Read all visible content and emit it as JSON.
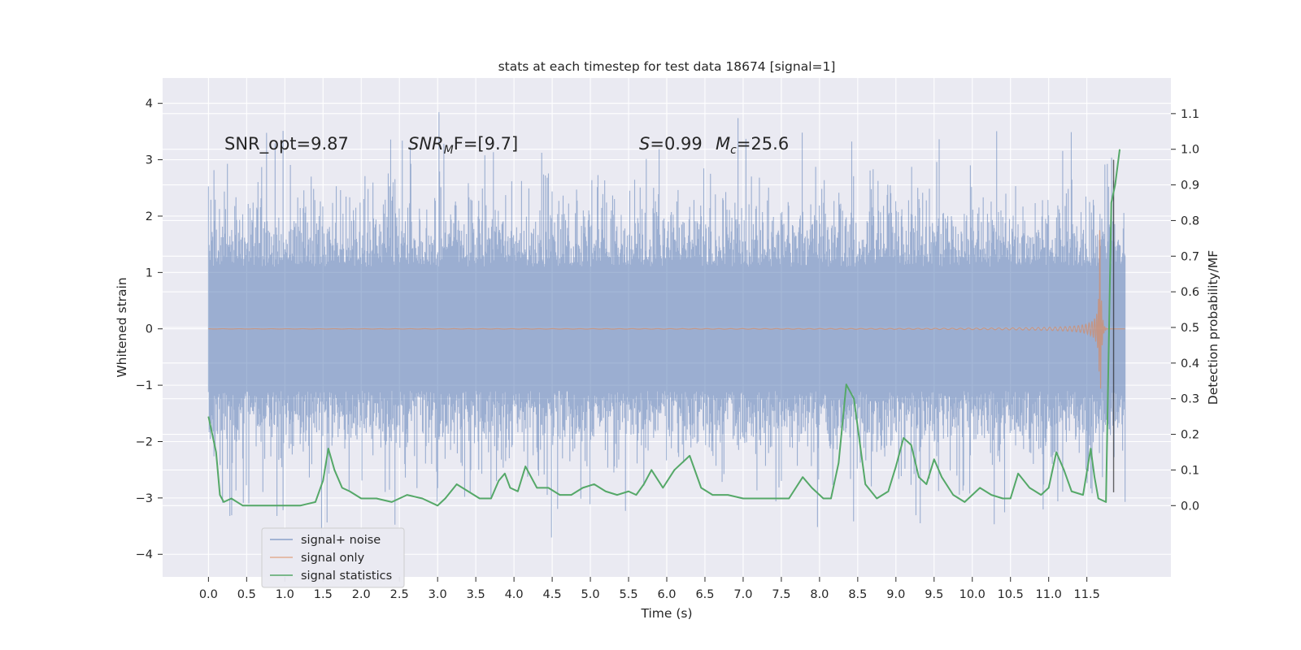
{
  "chart_data": {
    "type": "line",
    "title": "stats at each timestep for test data 18674 [signal=1]",
    "xlabel": "Time (s)",
    "ylabel_left": "Whitened strain",
    "ylabel_right": "Detection probability/MF",
    "xlim": [
      -0.6,
      12.6
    ],
    "ylim_left": [
      -4.4,
      4.45
    ],
    "ylim_right": [
      -0.2,
      1.2
    ],
    "grid": true,
    "legend_position": "lower-left",
    "x_ticks": [
      "0.0",
      "0.5",
      "1.0",
      "1.5",
      "2.0",
      "2.5",
      "3.0",
      "3.5",
      "4.0",
      "4.5",
      "5.0",
      "5.5",
      "6.0",
      "6.5",
      "7.0",
      "7.5",
      "8.0",
      "8.5",
      "9.0",
      "9.5",
      "10.0",
      "10.5",
      "11.0",
      "11.5"
    ],
    "y_left_ticks": [
      "4",
      "3",
      "2",
      "1",
      "0",
      "−1",
      "−2",
      "−3",
      "−4"
    ],
    "y_right_ticks": [
      "1.1",
      "1.0",
      "0.9",
      "0.8",
      "0.7",
      "0.6",
      "0.5",
      "0.4",
      "0.3",
      "0.2",
      "0.1",
      "0.0"
    ],
    "annotations": {
      "snr_opt": "SNR_opt=9.87",
      "snr_mf_main": "SNR",
      "snr_mf_sub": "M",
      "snr_mf_rest": "F=[9.7]",
      "s_label": "S",
      "s_value": "=0.99",
      "mc_label": "M",
      "mc_sub": "c",
      "mc_value": "=25.6"
    },
    "series": [
      {
        "name": "signal+ noise",
        "color": "#4c72b0",
        "description_range": {
          "x": [
            0.0,
            12.0
          ],
          "y_typical": [
            -1.3,
            1.3
          ],
          "y_max": 4.1,
          "y_min": -3.7
        }
      },
      {
        "name": "signal only",
        "color": "#dd8452",
        "chirp": {
          "x_start": 0.0,
          "x_merger": 11.67,
          "x_end": 12.0,
          "peak_amplitude": 1.95
        }
      },
      {
        "name": "signal statistics",
        "color": "#55a868",
        "axis": "right",
        "x": [
          0.0,
          0.1,
          0.15,
          0.2,
          0.3,
          0.45,
          0.6,
          0.8,
          1.0,
          1.2,
          1.4,
          1.5,
          1.57,
          1.65,
          1.75,
          1.85,
          2.0,
          2.2,
          2.4,
          2.6,
          2.8,
          3.0,
          3.1,
          3.25,
          3.4,
          3.55,
          3.7,
          3.8,
          3.88,
          3.95,
          4.05,
          4.15,
          4.3,
          4.45,
          4.6,
          4.75,
          4.9,
          5.05,
          5.2,
          5.35,
          5.5,
          5.6,
          5.7,
          5.8,
          5.95,
          6.1,
          6.3,
          6.45,
          6.6,
          6.8,
          7.0,
          7.2,
          7.4,
          7.6,
          7.78,
          7.9,
          8.05,
          8.15,
          8.25,
          8.35,
          8.45,
          8.6,
          8.75,
          8.9,
          9.0,
          9.1,
          9.2,
          9.3,
          9.4,
          9.5,
          9.6,
          9.75,
          9.9,
          10.1,
          10.25,
          10.4,
          10.5,
          10.6,
          10.75,
          10.9,
          11.0,
          11.1,
          11.2,
          11.3,
          11.45,
          11.55,
          11.6,
          11.65,
          11.75,
          11.82,
          11.87,
          11.93
        ],
        "values": [
          0.25,
          0.15,
          0.03,
          0.01,
          0.02,
          0.0,
          0.0,
          0.0,
          0.0,
          0.0,
          0.01,
          0.07,
          0.16,
          0.1,
          0.05,
          0.04,
          0.02,
          0.02,
          0.01,
          0.03,
          0.02,
          0.0,
          0.02,
          0.06,
          0.04,
          0.02,
          0.02,
          0.07,
          0.09,
          0.05,
          0.04,
          0.11,
          0.05,
          0.05,
          0.03,
          0.03,
          0.05,
          0.06,
          0.04,
          0.03,
          0.04,
          0.03,
          0.06,
          0.1,
          0.05,
          0.1,
          0.14,
          0.05,
          0.03,
          0.03,
          0.02,
          0.02,
          0.02,
          0.02,
          0.08,
          0.05,
          0.02,
          0.02,
          0.12,
          0.34,
          0.3,
          0.06,
          0.02,
          0.04,
          0.11,
          0.19,
          0.17,
          0.08,
          0.06,
          0.13,
          0.08,
          0.03,
          0.01,
          0.05,
          0.03,
          0.02,
          0.02,
          0.09,
          0.05,
          0.03,
          0.05,
          0.15,
          0.1,
          0.04,
          0.03,
          0.16,
          0.08,
          0.02,
          0.01,
          0.85,
          0.9,
          1.0
        ]
      }
    ],
    "vertical_marker": {
      "x": 11.85,
      "color": "#262626"
    }
  }
}
